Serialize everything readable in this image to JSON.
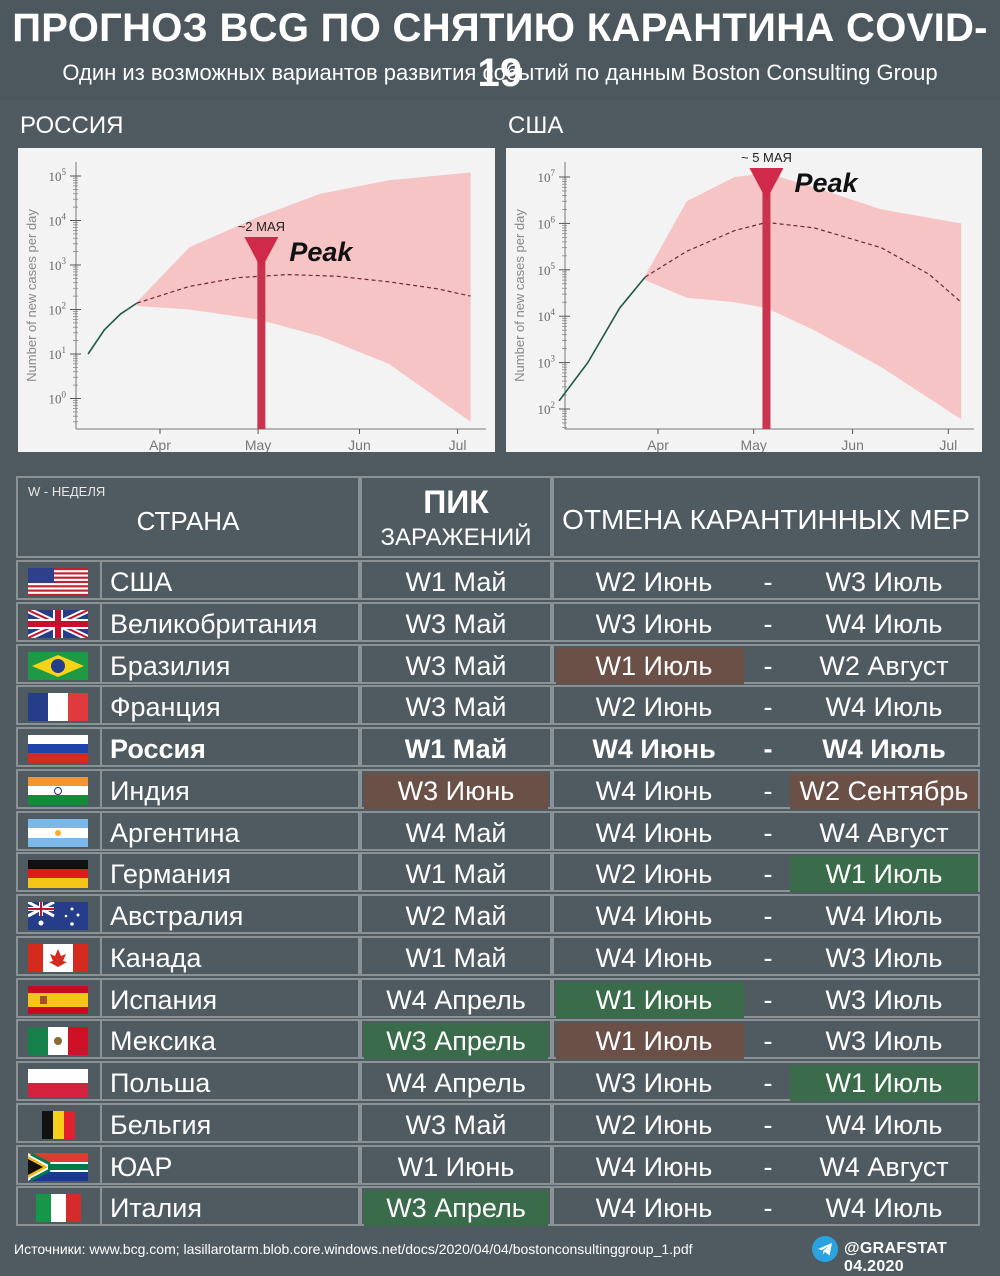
{
  "header": {
    "title": "ПРОГНОЗ BCG ПО СНЯТИЮ КАРАНТИНА COVID-19",
    "subtitle": "Один из возможных вариантов развития событий по данным Boston Consulting Group"
  },
  "chart_data": [
    {
      "type": "area",
      "title": "РОССИЯ",
      "ylabel": "Number of new cases per day",
      "x_ticks": [
        "Apr",
        "May",
        "Jun",
        "Jul"
      ],
      "y_ticks": [
        "10^0",
        "10^1",
        "10^2",
        "10^3",
        "10^4",
        "10^5"
      ],
      "ylim_log10": [
        -0.5,
        5.5
      ],
      "yscale": "log",
      "observed": {
        "x": [
          "Mar 10",
          "Mar 15",
          "Mar 20",
          "Mar 25"
        ],
        "y": [
          10,
          35,
          80,
          140
        ]
      },
      "projection": {
        "x": [
          "Mar 25",
          "Apr 10",
          "Apr 25",
          "May 10",
          "May 25",
          "Jun 10",
          "Jun 25",
          "Jul 5"
        ],
        "y": [
          140,
          330,
          520,
          610,
          560,
          420,
          290,
          200
        ]
      },
      "band_upper": {
        "x": [
          "Mar 25",
          "Apr 10",
          "May 1",
          "May 20",
          "Jun 10",
          "Jul 5"
        ],
        "y": [
          150,
          2500,
          12000,
          40000,
          80000,
          120000
        ]
      },
      "band_lower": {
        "x": [
          "Mar 25",
          "Apr 10",
          "May 1",
          "May 20",
          "Jun 10",
          "Jul 5"
        ],
        "y": [
          120,
          100,
          60,
          25,
          6,
          0.3
        ]
      },
      "peak": {
        "label": "~2 МАЯ",
        "text": "Peak",
        "x": "May 2"
      }
    },
    {
      "type": "area",
      "title": "США",
      "ylabel": "Number of new cases per day",
      "x_ticks": [
        "Apr",
        "May",
        "Jun",
        "Jul"
      ],
      "y_ticks": [
        "10^2",
        "10^3",
        "10^4",
        "10^5",
        "10^6",
        "10^7"
      ],
      "ylim_log10": [
        1.7,
        7.5
      ],
      "yscale": "log",
      "observed": {
        "x": [
          "Mar 1",
          "Mar 10",
          "Mar 20",
          "Mar 28"
        ],
        "y": [
          150,
          1000,
          15000,
          70000
        ]
      },
      "projection": {
        "x": [
          "Mar 28",
          "Apr 10",
          "Apr 25",
          "May 5",
          "May 20",
          "Jun 10",
          "Jun 25",
          "Jul 5"
        ],
        "y": [
          70000,
          250000,
          700000,
          1050000,
          800000,
          300000,
          80000,
          20000
        ]
      },
      "band_upper": {
        "x": [
          "Mar 28",
          "Apr 10",
          "Apr 25",
          "May 5",
          "May 20",
          "Jun 10",
          "Jul 5"
        ],
        "y": [
          75000,
          3000000,
          10000000,
          12000000,
          6000000,
          2000000,
          1000000
        ]
      },
      "band_lower": {
        "x": [
          "Mar 28",
          "Apr 10",
          "Apr 25",
          "May 5",
          "May 20",
          "Jun 10",
          "Jul 5"
        ],
        "y": [
          60000,
          25000,
          20000,
          15000,
          5000,
          800,
          60
        ]
      },
      "peak": {
        "label": "~ 5 МАЯ",
        "text": "Peak",
        "x": "May 5"
      }
    }
  ],
  "table": {
    "note": "W - НЕДЕЛЯ",
    "col_country": "СТРАНА",
    "col_peak_1": "ПИК",
    "col_peak_2": "ЗАРАЖЕНИЙ",
    "col_lift": "ОТМЕНА КАРАНТИННЫХ МЕР",
    "dash": "-",
    "highlight_colors": {
      "brown": "#6b5047",
      "green": "#3a6b4a"
    },
    "rows": [
      {
        "flag": "usa",
        "country": "США",
        "peak": "W1 Май",
        "from": "W2 Июнь",
        "to": "W3 Июль",
        "peak_hl": "",
        "from_hl": "",
        "to_hl": "",
        "bold": false
      },
      {
        "flag": "uk",
        "country": "Великобритания",
        "peak": "W3 Май",
        "from": "W3 Июнь",
        "to": "W4 Июль",
        "peak_hl": "",
        "from_hl": "",
        "to_hl": "",
        "bold": false
      },
      {
        "flag": "brazil",
        "country": "Бразилия",
        "peak": "W3 Май",
        "from": "W1 Июль",
        "to": "W2 Август",
        "peak_hl": "",
        "from_hl": "brown",
        "to_hl": "",
        "bold": false
      },
      {
        "flag": "france",
        "country": "Франция",
        "peak": "W3 Май",
        "from": "W2 Июнь",
        "to": "W4 Июль",
        "peak_hl": "",
        "from_hl": "",
        "to_hl": "",
        "bold": false
      },
      {
        "flag": "russia",
        "country": "Россия",
        "peak": "W1 Май",
        "from": "W4 Июнь",
        "to": "W4 Июль",
        "peak_hl": "",
        "from_hl": "",
        "to_hl": "",
        "bold": true
      },
      {
        "flag": "india",
        "country": "Индия",
        "peak": "W3 Июнь",
        "from": "W4 Июнь",
        "to": "W2 Сентябрь",
        "peak_hl": "brown",
        "from_hl": "",
        "to_hl": "brown",
        "bold": false
      },
      {
        "flag": "argentina",
        "country": "Аргентина",
        "peak": "W4 Май",
        "from": "W4 Июнь",
        "to": "W4 Август",
        "peak_hl": "",
        "from_hl": "",
        "to_hl": "",
        "bold": false
      },
      {
        "flag": "germany",
        "country": "Германия",
        "peak": "W1 Май",
        "from": "W2 Июнь",
        "to": "W1 Июль",
        "peak_hl": "",
        "from_hl": "",
        "to_hl": "green",
        "bold": false
      },
      {
        "flag": "australia",
        "country": "Австралия",
        "peak": "W2 Май",
        "from": "W4 Июнь",
        "to": "W4 Июль",
        "peak_hl": "",
        "from_hl": "",
        "to_hl": "",
        "bold": false
      },
      {
        "flag": "canada",
        "country": "Канада",
        "peak": "W1 Май",
        "from": "W4 Июнь",
        "to": "W3 Июль",
        "peak_hl": "",
        "from_hl": "",
        "to_hl": "",
        "bold": false
      },
      {
        "flag": "spain",
        "country": "Испания",
        "peak": "W4 Апрель",
        "from": "W1 Июнь",
        "to": "W3 Июль",
        "peak_hl": "",
        "from_hl": "green",
        "to_hl": "",
        "bold": false
      },
      {
        "flag": "mexico",
        "country": "Мексика",
        "peak": "W3 Апрель",
        "from": "W1 Июль",
        "to": "W3 Июль",
        "peak_hl": "green",
        "from_hl": "brown",
        "to_hl": "",
        "bold": false
      },
      {
        "flag": "poland",
        "country": "Польша",
        "peak": "W4 Апрель",
        "from": "W3 Июнь",
        "to": "W1 Июль",
        "peak_hl": "",
        "from_hl": "",
        "to_hl": "green",
        "bold": false
      },
      {
        "flag": "belgium",
        "country": "Бельгия",
        "peak": "W3 Май",
        "from": "W2 Июнь",
        "to": "W4 Июль",
        "peak_hl": "",
        "from_hl": "",
        "to_hl": "",
        "bold": false
      },
      {
        "flag": "southafrica",
        "country": "ЮАР",
        "peak": "W1 Июнь",
        "from": "W4 Июнь",
        "to": "W4 Август",
        "peak_hl": "",
        "from_hl": "",
        "to_hl": "",
        "bold": false
      },
      {
        "flag": "italy",
        "country": "Италия",
        "peak": "W3 Апрель",
        "from": "W4 Июнь",
        "to": "W4 Июль",
        "peak_hl": "green",
        "from_hl": "",
        "to_hl": "",
        "bold": false
      }
    ]
  },
  "footer": {
    "sources": "Источники: www.bcg.com; lasillarotarm.blob.core.windows.net/docs/2020/04/04/bostonconsultinggroup_1.pdf",
    "brand": "@GRAFSTAT 04.2020",
    "brand_icon": "telegram-icon"
  }
}
